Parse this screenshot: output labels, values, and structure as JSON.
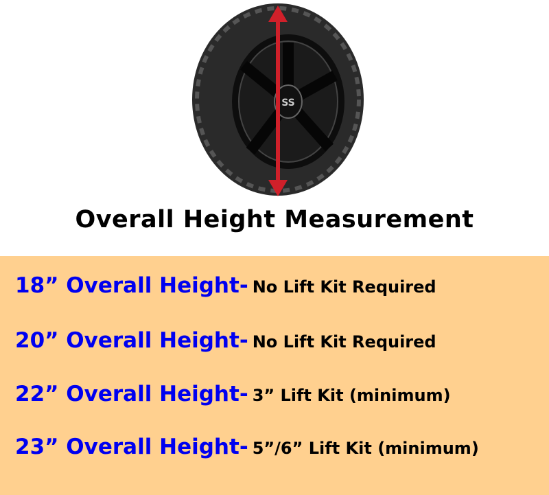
{
  "title": "Overall Height Measurement",
  "colors": {
    "band": "#FFD08F",
    "label": "#0000F0",
    "arrow": "#D0202A"
  },
  "wheel_logo": "SS",
  "rows": [
    {
      "label": "18” Overall Height-",
      "value": "No Lift Kit Required"
    },
    {
      "label": "20” Overall Height-",
      "value": "No Lift Kit Required"
    },
    {
      "label": "22” Overall Height-",
      "value": "3” Lift Kit (minimum)"
    },
    {
      "label": "23” Overall Height-",
      "value": "5”/6” Lift Kit (minimum)"
    }
  ]
}
